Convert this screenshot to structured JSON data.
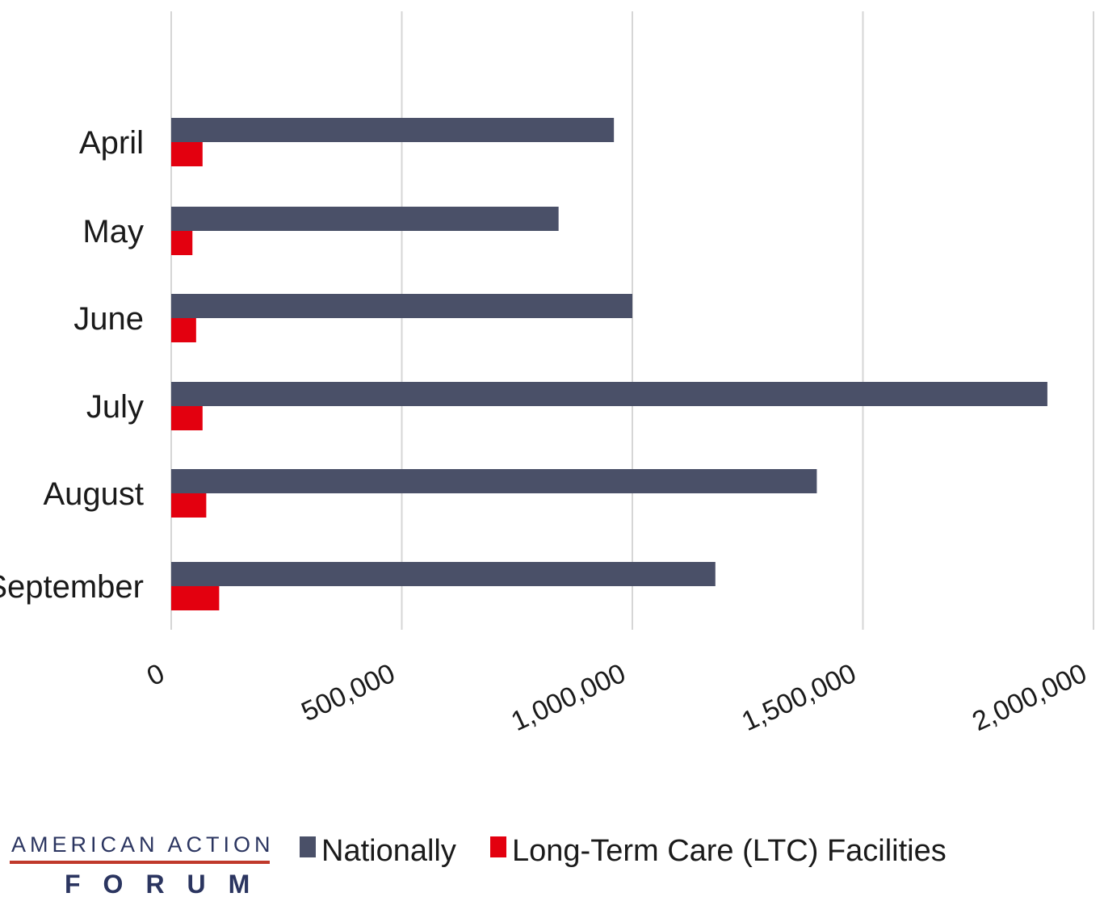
{
  "chart_data": {
    "type": "bar",
    "orientation": "horizontal",
    "categories": [
      "April",
      "May",
      "June",
      "July",
      "August",
      "September"
    ],
    "series": [
      {
        "name": "Nationally",
        "color": "#4a5068",
        "values": [
          960000,
          840000,
          1000000,
          1900000,
          1400000,
          1180000
        ]
      },
      {
        "name": "Long-Term Care (LTC) Facilities",
        "color": "#e3000f",
        "values": [
          68000,
          46000,
          54000,
          68000,
          76000,
          104000
        ]
      }
    ],
    "xlim": [
      0,
      2000000
    ],
    "xticks": [
      0,
      500000,
      1000000,
      1500000,
      2000000
    ],
    "xtick_labels": [
      "0",
      "500,000",
      "1,000,000",
      "1,500,000",
      "2,000,000"
    ],
    "grid": true,
    "legend_position": "bottom"
  },
  "branding": {
    "line1": "AMERICAN ACTION",
    "line2": "FORUM",
    "rule_color": "#c0392b"
  }
}
